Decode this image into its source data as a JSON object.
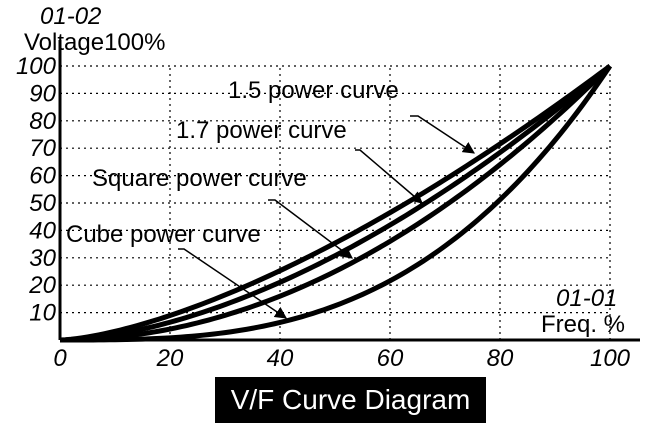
{
  "chart_data": {
    "type": "line",
    "title": "V/F Curve Diagram",
    "y_param": "01-02",
    "ylabel": "Voltage100%",
    "x_param": "01-01",
    "xlabel": "Freq. %",
    "xlim": [
      0,
      100
    ],
    "ylim": [
      0,
      100
    ],
    "x_ticks": [
      0,
      20,
      40,
      60,
      80,
      100
    ],
    "y_ticks": [
      10,
      20,
      30,
      40,
      50,
      60,
      70,
      80,
      90,
      100
    ],
    "grid": true,
    "series": [
      {
        "name": "1.5 power curve",
        "exponent": 1.5,
        "x": [
          0,
          10,
          20,
          30,
          40,
          50,
          60,
          70,
          80,
          90,
          100
        ],
        "y": [
          0,
          3.2,
          8.9,
          16.4,
          25.3,
          35.4,
          46.5,
          58.6,
          71.6,
          85.4,
          100
        ]
      },
      {
        "name": "1.7 power curve",
        "exponent": 1.7,
        "x": [
          0,
          10,
          20,
          30,
          40,
          50,
          60,
          70,
          80,
          90,
          100
        ],
        "y": [
          0,
          2.0,
          6.5,
          12.9,
          21.1,
          30.8,
          42.0,
          54.5,
          68.4,
          83.6,
          100
        ]
      },
      {
        "name": "Square power curve",
        "exponent": 2,
        "x": [
          0,
          10,
          20,
          30,
          40,
          50,
          60,
          70,
          80,
          90,
          100
        ],
        "y": [
          0,
          1.0,
          4.0,
          9.0,
          16.0,
          25.0,
          36.0,
          49.0,
          64.0,
          81.0,
          100
        ]
      },
      {
        "name": "Cube power curve",
        "exponent": 3,
        "x": [
          0,
          10,
          20,
          30,
          40,
          50,
          60,
          70,
          80,
          90,
          100
        ],
        "y": [
          0,
          0.1,
          0.8,
          2.7,
          6.4,
          12.5,
          21.6,
          34.3,
          51.2,
          72.9,
          100
        ]
      }
    ]
  }
}
